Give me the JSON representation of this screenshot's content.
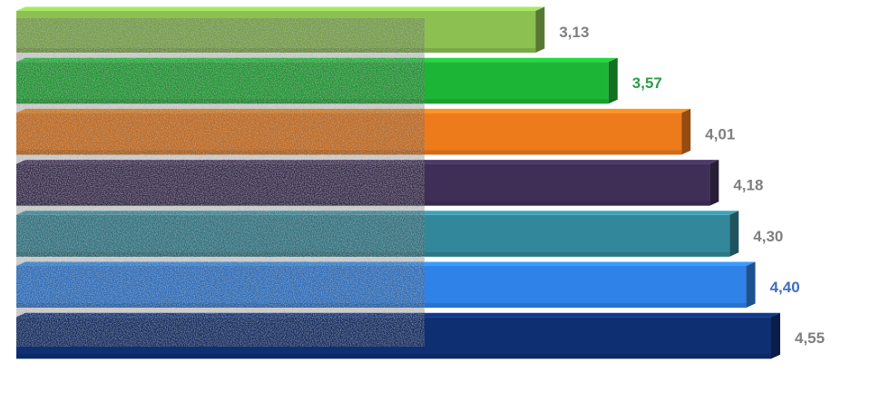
{
  "chart_data": {
    "type": "bar",
    "orientation": "horizontal",
    "style": "3d",
    "title": "",
    "xlabel": "",
    "ylabel": "",
    "xlim": [
      0,
      4.55
    ],
    "grid": false,
    "legend": "none",
    "values": [
      {
        "value": 3.13,
        "label": "3,13",
        "color": "#8cc152",
        "label_color": "#7f7f7f"
      },
      {
        "value": 3.57,
        "label": "3,57",
        "color": "#1db535",
        "label_color": "#2e9a4a"
      },
      {
        "value": 4.01,
        "label": "4,01",
        "color": "#ee7b1b",
        "label_color": "#7f7f7f"
      },
      {
        "value": 4.18,
        "label": "4,18",
        "color": "#3f2f57",
        "label_color": "#7f7f7f"
      },
      {
        "value": 4.3,
        "label": "4,30",
        "color": "#32889a",
        "label_color": "#7f7f7f"
      },
      {
        "value": 4.4,
        "label": "4,40",
        "color": "#2f82e8",
        "label_color": "#3f6fbf"
      },
      {
        "value": 4.55,
        "label": "4,55",
        "color": "#0f2f73",
        "label_color": "#7f7f7f"
      }
    ],
    "overlay": "noise-texture"
  }
}
